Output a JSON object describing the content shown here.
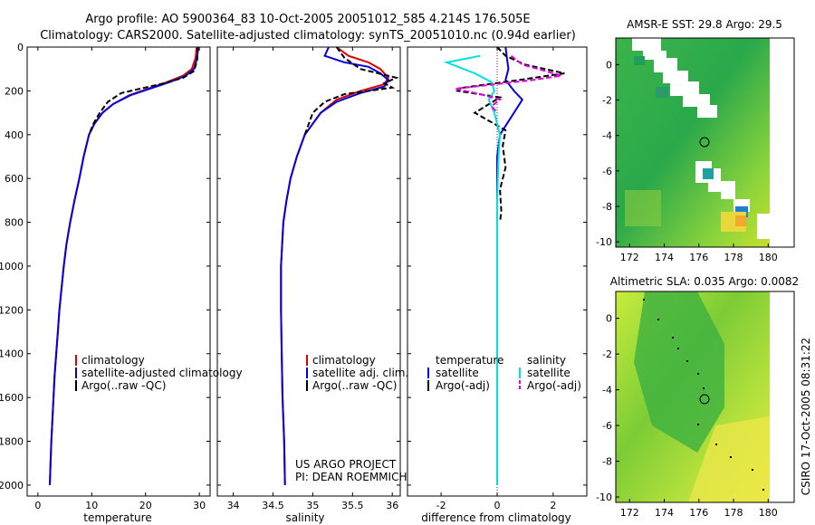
{
  "header": {
    "line1": "Argo profile: AO 5900364_83 10-Oct-2005 20051012_585 4.214S 176.505E",
    "line2": "Climatology: CARS2000. Satellite-adjusted climatology: synTS_20051010.nc (0.94d earlier)"
  },
  "footer": {
    "project": "US ARGO PROJECT",
    "pi": "PI: DEAN ROEMMICH",
    "stamp": "CSIRO 17-Oct-2005 08:31:22"
  },
  "colors": {
    "climatology": "#e00000",
    "satellite": "#0000e0",
    "argo": "#000000",
    "sat_salinity": "#00e0e0",
    "argo_salinity": "#e000e0"
  },
  "chart_data": [
    {
      "id": "temperature",
      "type": "line",
      "title": "",
      "xlabel": "temperature",
      "ylabel": "",
      "xlim": [
        -2,
        32
      ],
      "ylim": [
        2050,
        0
      ],
      "xticks": [
        0,
        10,
        20,
        30
      ],
      "yticks": [
        0,
        200,
        400,
        600,
        800,
        1000,
        1200,
        1400,
        1600,
        1800,
        2000
      ],
      "legend": [
        "climatology",
        "satellite-adjusted climatology",
        "Argo(..raw -QC)"
      ],
      "series": [
        {
          "name": "climatology",
          "color": "#e00000",
          "dash": "",
          "points": [
            [
              29.5,
              0
            ],
            [
              29.3,
              50
            ],
            [
              28.6,
              100
            ],
            [
              27.0,
              130
            ],
            [
              24.0,
              160
            ],
            [
              20.5,
              190
            ],
            [
              17.0,
              220
            ],
            [
              14.0,
              260
            ],
            [
              12.0,
              300
            ],
            [
              10.5,
              350
            ],
            [
              9.5,
              400
            ],
            [
              8.5,
              500
            ],
            [
              7.7,
              600
            ],
            [
              6.8,
              700
            ],
            [
              6.0,
              800
            ],
            [
              5.3,
              900
            ],
            [
              4.8,
              1000
            ],
            [
              4.4,
              1100
            ],
            [
              4.0,
              1200
            ],
            [
              3.7,
              1300
            ],
            [
              3.4,
              1400
            ],
            [
              3.1,
              1500
            ],
            [
              2.9,
              1600
            ],
            [
              2.7,
              1700
            ],
            [
              2.5,
              1800
            ],
            [
              2.35,
              1900
            ],
            [
              2.2,
              2000
            ]
          ]
        },
        {
          "name": "satellite-adjusted climatology",
          "color": "#0000e0",
          "dash": "",
          "points": [
            [
              29.8,
              0
            ],
            [
              29.6,
              50
            ],
            [
              29.0,
              100
            ],
            [
              27.5,
              130
            ],
            [
              24.5,
              160
            ],
            [
              20.8,
              190
            ],
            [
              17.2,
              220
            ],
            [
              14.0,
              260
            ],
            [
              12.0,
              300
            ],
            [
              10.5,
              350
            ],
            [
              9.5,
              400
            ],
            [
              8.5,
              500
            ],
            [
              7.7,
              600
            ],
            [
              6.8,
              700
            ],
            [
              6.0,
              800
            ],
            [
              5.3,
              900
            ],
            [
              4.8,
              1000
            ],
            [
              4.4,
              1100
            ],
            [
              4.0,
              1200
            ],
            [
              3.7,
              1300
            ],
            [
              3.4,
              1400
            ],
            [
              3.1,
              1500
            ],
            [
              2.9,
              1600
            ],
            [
              2.7,
              1700
            ],
            [
              2.5,
              1800
            ],
            [
              2.35,
              1900
            ],
            [
              2.2,
              2000
            ]
          ]
        },
        {
          "name": "Argo(..raw -QC)",
          "color": "#000000",
          "dash": "6,3",
          "points": [
            [
              29.7,
              0
            ],
            [
              29.6,
              60
            ],
            [
              29.0,
              110
            ],
            [
              27.0,
              140
            ],
            [
              23.5,
              165
            ],
            [
              19.0,
              190
            ],
            [
              15.5,
              210
            ],
            [
              13.0,
              250
            ],
            [
              11.5,
              300
            ],
            [
              10.3,
              350
            ],
            [
              9.5,
              400
            ]
          ]
        }
      ]
    },
    {
      "id": "salinity",
      "type": "line",
      "title": "",
      "xlabel": "salinity",
      "ylabel": "",
      "xlim": [
        33.8,
        36.1
      ],
      "ylim": [
        2050,
        0
      ],
      "xticks": [
        34,
        34.5,
        35,
        35.5,
        36
      ],
      "legend": [
        "climatology",
        "satellite adj. clim.",
        "Argo(..raw -QC)"
      ],
      "series": [
        {
          "name": "climatology",
          "color": "#e00000",
          "dash": "",
          "points": [
            [
              35.3,
              0
            ],
            [
              35.45,
              40
            ],
            [
              35.7,
              70
            ],
            [
              35.85,
              100
            ],
            [
              35.95,
              140
            ],
            [
              35.9,
              170
            ],
            [
              35.6,
              200
            ],
            [
              35.3,
              240
            ],
            [
              35.1,
              300
            ],
            [
              35.0,
              350
            ],
            [
              34.9,
              400
            ],
            [
              34.8,
              500
            ],
            [
              34.72,
              600
            ],
            [
              34.67,
              700
            ],
            [
              34.63,
              800
            ],
            [
              34.6,
              1000
            ],
            [
              34.6,
              1200
            ],
            [
              34.61,
              1400
            ],
            [
              34.62,
              1600
            ],
            [
              34.64,
              1800
            ],
            [
              34.65,
              2000
            ]
          ]
        },
        {
          "name": "satellite adj. clim.",
          "color": "#0000e0",
          "dash": "",
          "points": [
            [
              35.2,
              0
            ],
            [
              35.15,
              40
            ],
            [
              35.4,
              70
            ],
            [
              35.7,
              90
            ],
            [
              35.85,
              120
            ],
            [
              35.95,
              150
            ],
            [
              35.9,
              180
            ],
            [
              35.6,
              210
            ],
            [
              35.3,
              250
            ],
            [
              35.1,
              300
            ],
            [
              35.0,
              350
            ],
            [
              34.9,
              400
            ],
            [
              34.8,
              500
            ],
            [
              34.72,
              600
            ],
            [
              34.67,
              700
            ],
            [
              34.63,
              800
            ],
            [
              34.6,
              1000
            ],
            [
              34.6,
              1200
            ],
            [
              34.61,
              1400
            ],
            [
              34.62,
              1600
            ],
            [
              34.64,
              1800
            ],
            [
              34.65,
              2000
            ]
          ]
        },
        {
          "name": "Argo(..raw -QC)",
          "color": "#000000",
          "dash": "6,3",
          "points": [
            [
              35.3,
              0
            ],
            [
              35.4,
              50
            ],
            [
              35.6,
              100
            ],
            [
              36.05,
              140
            ],
            [
              35.9,
              165
            ],
            [
              36.0,
              185
            ],
            [
              35.4,
              215
            ],
            [
              35.15,
              250
            ],
            [
              35.0,
              300
            ],
            [
              34.95,
              350
            ],
            [
              34.9,
              400
            ]
          ]
        }
      ]
    },
    {
      "id": "difference",
      "type": "line",
      "title": "",
      "xlabel": "difference from climatology",
      "ylabel": "",
      "xlim": [
        -3.2,
        3.2
      ],
      "ylim": [
        2050,
        0
      ],
      "xticks": [
        -2,
        0,
        2
      ],
      "legend_headers": [
        "temperature",
        "salinity"
      ],
      "legend": [
        "satellite",
        "Argo(-adj)",
        "satellite",
        "Argo(-adj)"
      ],
      "series": [
        {
          "name": "satellite",
          "group": "temperature",
          "color": "#0000e0",
          "dash": "",
          "points": [
            [
              0.3,
              0
            ],
            [
              0.35,
              50
            ],
            [
              0.4,
              100
            ],
            [
              0.3,
              150
            ],
            [
              0.6,
              200
            ],
            [
              0.9,
              240
            ],
            [
              0.7,
              280
            ],
            [
              0.5,
              320
            ],
            [
              0.3,
              360
            ],
            [
              0.1,
              400
            ],
            [
              0.0,
              500
            ],
            [
              0.0,
              2000
            ]
          ]
        },
        {
          "name": "Argo(-adj)",
          "group": "temperature",
          "color": "#000000",
          "dash": "6,3",
          "points": [
            [
              0.0,
              0
            ],
            [
              0.3,
              40
            ],
            [
              1.0,
              80
            ],
            [
              2.4,
              120
            ],
            [
              0.8,
              150
            ],
            [
              -1.2,
              185
            ],
            [
              -1.4,
              200
            ],
            [
              0.1,
              230
            ],
            [
              -0.8,
              300
            ],
            [
              0.3,
              380
            ],
            [
              0.2,
              450
            ],
            [
              0.3,
              550
            ],
            [
              0.1,
              650
            ],
            [
              0.15,
              750
            ],
            [
              0.1,
              800
            ]
          ]
        },
        {
          "name": "satellite",
          "group": "salinity",
          "color": "#00e0e0",
          "dash": "",
          "points": [
            [
              -0.6,
              40
            ],
            [
              -1.8,
              70
            ],
            [
              -0.8,
              120
            ],
            [
              -0.2,
              160
            ],
            [
              -0.1,
              200
            ],
            [
              -0.3,
              240
            ],
            [
              -0.1,
              300
            ],
            [
              0.1,
              400
            ],
            [
              0.05,
              500
            ],
            [
              0.0,
              700
            ],
            [
              0.0,
              2000
            ]
          ]
        },
        {
          "name": "Argo(-adj)",
          "group": "salinity",
          "color": "#e000e0",
          "dash": "6,3",
          "points": [
            [
              0.5,
              40
            ],
            [
              0.9,
              80
            ],
            [
              2.3,
              130
            ],
            [
              1.3,
              150
            ],
            [
              -1.5,
              190
            ],
            [
              -0.6,
              215
            ],
            [
              0.1,
              240
            ],
            [
              -0.2,
              270
            ],
            [
              0.0,
              300
            ]
          ]
        }
      ]
    },
    {
      "id": "sst_map",
      "type": "heatmap",
      "title": "AMSR-E SST: 29.8 Argo: 29.5",
      "xlabel": "",
      "ylabel": "",
      "xlim": [
        171.2,
        181.5
      ],
      "ylim": [
        -10.3,
        1.5
      ],
      "xticks": [
        172,
        174,
        176,
        178,
        180
      ],
      "yticks": [
        0,
        -2,
        -4,
        -6,
        -8,
        -10
      ],
      "marker": [
        176.5,
        -4.21
      ]
    },
    {
      "id": "sla_map",
      "type": "heatmap",
      "title": "Altimetric SLA: 0.035 Argo: 0.0082",
      "xlabel": "",
      "ylabel": "",
      "xlim": [
        171.2,
        181.5
      ],
      "ylim": [
        -10.3,
        1.5
      ],
      "xticks": [
        172,
        174,
        176,
        178,
        180
      ],
      "yticks": [
        0,
        -2,
        -4,
        -6,
        -8,
        -10
      ],
      "marker": [
        176.5,
        -4.21
      ]
    }
  ]
}
